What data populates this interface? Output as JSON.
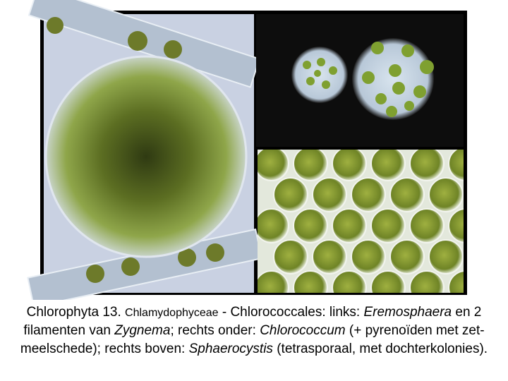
{
  "caption": {
    "lines": [
      [
        "Chlorophyta 13. ",
        "Chlamydophyceae",
        " - Chlorococcales: links: ",
        "Eremosphaera",
        " en 2"
      ],
      [
        "filamenten van ",
        "Zygnema",
        "; rechts onder: ",
        "Chlorococcum",
        " (+ pyrenoïden met zet-"
      ],
      [
        "meelschede); rechts boven: ",
        "Sphaerocystis",
        " (tetrasporaal, met dochterkolonies)."
      ]
    ]
  }
}
